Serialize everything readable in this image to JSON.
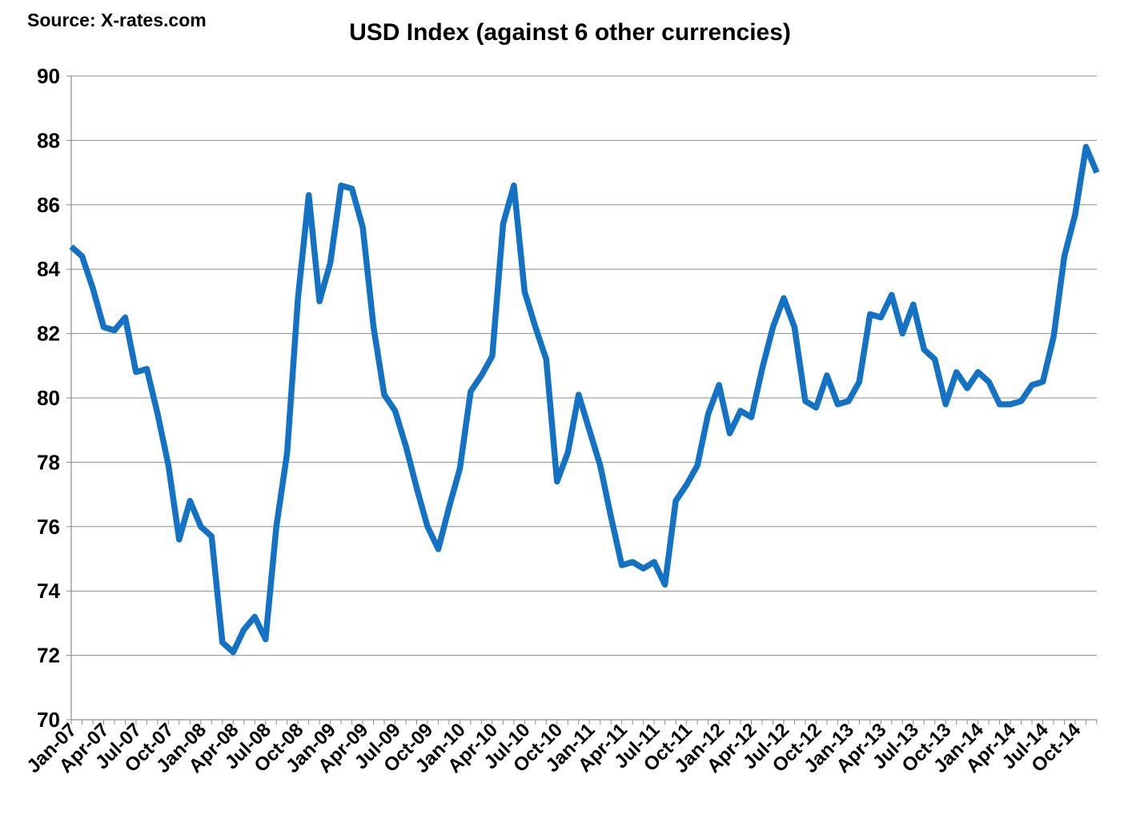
{
  "source_label": "Source: X-rates.com",
  "chart_data": {
    "type": "line",
    "title": "USD Index (against 6 other currencies)",
    "xlabel": "",
    "ylabel": "",
    "ylim": [
      70,
      90
    ],
    "yticks": [
      70,
      72,
      74,
      76,
      78,
      80,
      82,
      84,
      86,
      88,
      90
    ],
    "grid": true,
    "legend": "none",
    "line_color": "#1372C4",
    "x_tick_labels": [
      "Jan-07",
      "Apr-07",
      "Jul-07",
      "Oct-07",
      "Jan-08",
      "Apr-08",
      "Jul-08",
      "Oct-08",
      "Jan-09",
      "Apr-09",
      "Jul-09",
      "Oct-09",
      "Jan-10",
      "Apr-10",
      "Jul-10",
      "Oct-10",
      "Jan-11",
      "Apr-11",
      "Jul-11",
      "Oct-11",
      "Jan-12",
      "Apr-12",
      "Jul-12",
      "Oct-12",
      "Jan-13",
      "Apr-13",
      "Jul-13",
      "Oct-13",
      "Jan-14",
      "Apr-14",
      "Jul-14",
      "Oct-14"
    ],
    "x": [
      "Jan-07",
      "Feb-07",
      "Mar-07",
      "Apr-07",
      "May-07",
      "Jun-07",
      "Jul-07",
      "Aug-07",
      "Sep-07",
      "Oct-07",
      "Nov-07",
      "Dec-07",
      "Jan-08",
      "Feb-08",
      "Mar-08",
      "Apr-08",
      "May-08",
      "Jun-08",
      "Jul-08",
      "Aug-08",
      "Sep-08",
      "Oct-08",
      "Nov-08",
      "Dec-08",
      "Jan-09",
      "Feb-09",
      "Mar-09",
      "Apr-09",
      "May-09",
      "Jun-09",
      "Jul-09",
      "Aug-09",
      "Sep-09",
      "Oct-09",
      "Nov-09",
      "Dec-09",
      "Jan-10",
      "Feb-10",
      "Mar-10",
      "Apr-10",
      "May-10",
      "Jun-10",
      "Jul-10",
      "Aug-10",
      "Sep-10",
      "Oct-10",
      "Nov-10",
      "Dec-10",
      "Jan-11",
      "Feb-11",
      "Mar-11",
      "Apr-11",
      "May-11",
      "Jun-11",
      "Jul-11",
      "Aug-11",
      "Sep-11",
      "Oct-11",
      "Nov-11",
      "Dec-11",
      "Jan-12",
      "Feb-12",
      "Mar-12",
      "Apr-12",
      "May-12",
      "Jun-12",
      "Jul-12",
      "Aug-12",
      "Sep-12",
      "Oct-12",
      "Nov-12",
      "Dec-12",
      "Jan-13",
      "Feb-13",
      "Mar-13",
      "Apr-13",
      "May-13",
      "Jun-13",
      "Jul-13",
      "Aug-13",
      "Sep-13",
      "Oct-13",
      "Nov-13",
      "Dec-13",
      "Jan-14",
      "Feb-14",
      "Mar-14",
      "Apr-14",
      "May-14",
      "Jun-14",
      "Jul-14",
      "Aug-14",
      "Sep-14",
      "Oct-14",
      "Nov-14",
      "Dec-14"
    ],
    "series": [
      {
        "values": [
          84.7,
          84.4,
          83.4,
          82.2,
          82.1,
          82.5,
          80.8,
          80.9,
          79.5,
          77.9,
          75.6,
          76.8,
          76.0,
          75.7,
          72.4,
          72.1,
          72.8,
          73.2,
          72.5,
          76.0,
          78.3,
          83.1,
          86.3,
          83.0,
          84.2,
          86.6,
          86.5,
          85.3,
          82.2,
          80.1,
          79.6,
          78.5,
          77.2,
          76.0,
          75.3,
          76.6,
          77.8,
          80.2,
          80.7,
          81.3,
          85.4,
          86.6,
          83.3,
          82.2,
          81.2,
          77.4,
          78.3,
          80.1,
          79.0,
          77.9,
          76.3,
          74.8,
          74.9,
          74.7,
          74.9,
          74.2,
          76.8,
          77.3,
          77.9,
          79.5,
          80.4,
          78.9,
          79.6,
          79.4,
          80.9,
          82.2,
          83.1,
          82.2,
          79.9,
          79.7,
          80.7,
          79.8,
          79.9,
          80.5,
          82.6,
          82.5,
          83.2,
          82.0,
          82.9,
          81.5,
          81.2,
          79.8,
          80.8,
          80.3,
          80.8,
          80.5,
          79.8,
          79.8,
          79.9,
          80.4,
          80.5,
          81.9,
          84.4,
          85.7,
          87.8,
          87.0
        ]
      }
    ]
  }
}
